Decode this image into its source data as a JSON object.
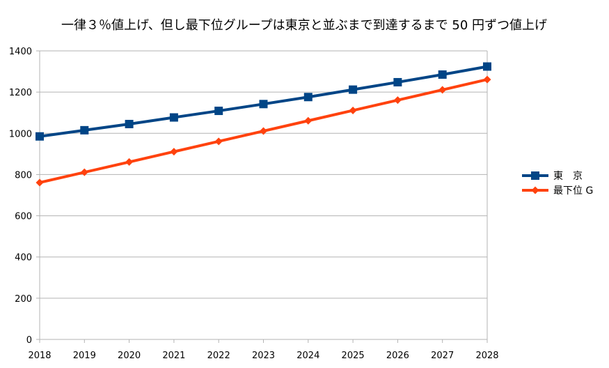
{
  "chart_data": {
    "type": "line",
    "title": "一律３％値上げ、但し最下位グループは東京と並ぶまで到達するまで 50 円ずつ値上げ",
    "xlabel": "",
    "ylabel": "",
    "categories": [
      "2018",
      "2019",
      "2020",
      "2021",
      "2022",
      "2023",
      "2024",
      "2025",
      "2026",
      "2027",
      "2028"
    ],
    "ylim": [
      0,
      1400
    ],
    "yticks": [
      0,
      200,
      400,
      600,
      800,
      1000,
      1200,
      1400
    ],
    "grid": true,
    "legend_position": "right",
    "series": [
      {
        "name": "東　京",
        "color": "#004586",
        "marker": "square",
        "values": [
          985,
          1015,
          1045,
          1077,
          1109,
          1142,
          1176,
          1212,
          1248,
          1285,
          1324
        ]
      },
      {
        "name": "最下位 G",
        "color": "#ff420e",
        "marker": "diamond",
        "values": [
          761,
          811,
          861,
          911,
          961,
          1011,
          1061,
          1111,
          1161,
          1211,
          1261
        ]
      }
    ]
  }
}
